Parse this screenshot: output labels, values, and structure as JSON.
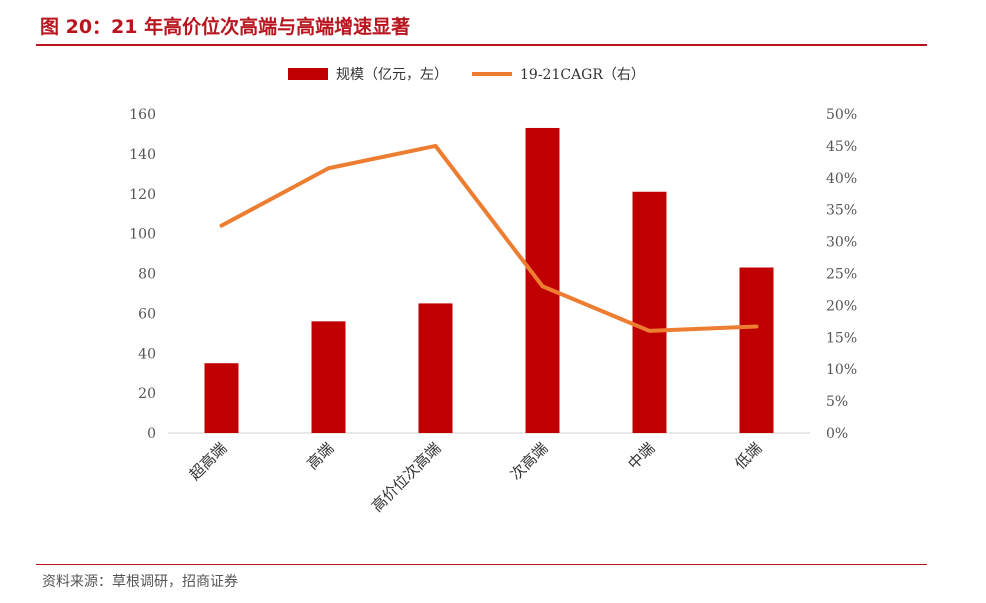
{
  "header": {
    "title": "图 20：21 年高价位次高端与高端增速显著"
  },
  "footer": {
    "source": "资料来源：草根调研，招商证券"
  },
  "colors": {
    "accent": "#b9151f",
    "bar": "#c00000",
    "line": "#ed7d31"
  },
  "chart_data": {
    "type": "bar",
    "categories": [
      "超高端",
      "高端",
      "高价位次高端",
      "次高端",
      "中端",
      "低端"
    ],
    "series": [
      {
        "name": "规模（亿元，左）",
        "type": "bar",
        "axis": "left",
        "values": [
          35,
          56,
          65,
          153,
          121,
          83
        ]
      },
      {
        "name": "19-21CAGR（右）",
        "type": "line",
        "axis": "right",
        "values": [
          0.325,
          0.415,
          0.45,
          0.23,
          0.16,
          0.167
        ]
      }
    ],
    "y_left": {
      "ylim": [
        0,
        160
      ],
      "ticks": [
        "0",
        "20",
        "40",
        "60",
        "80",
        "100",
        "120",
        "140",
        "160"
      ]
    },
    "y_right": {
      "ylim": [
        0,
        0.5
      ],
      "ticks": [
        "0%",
        "5%",
        "10%",
        "15%",
        "20%",
        "25%",
        "30%",
        "35%",
        "40%",
        "45%",
        "50%"
      ]
    },
    "grid": false,
    "legend_position": "top"
  }
}
